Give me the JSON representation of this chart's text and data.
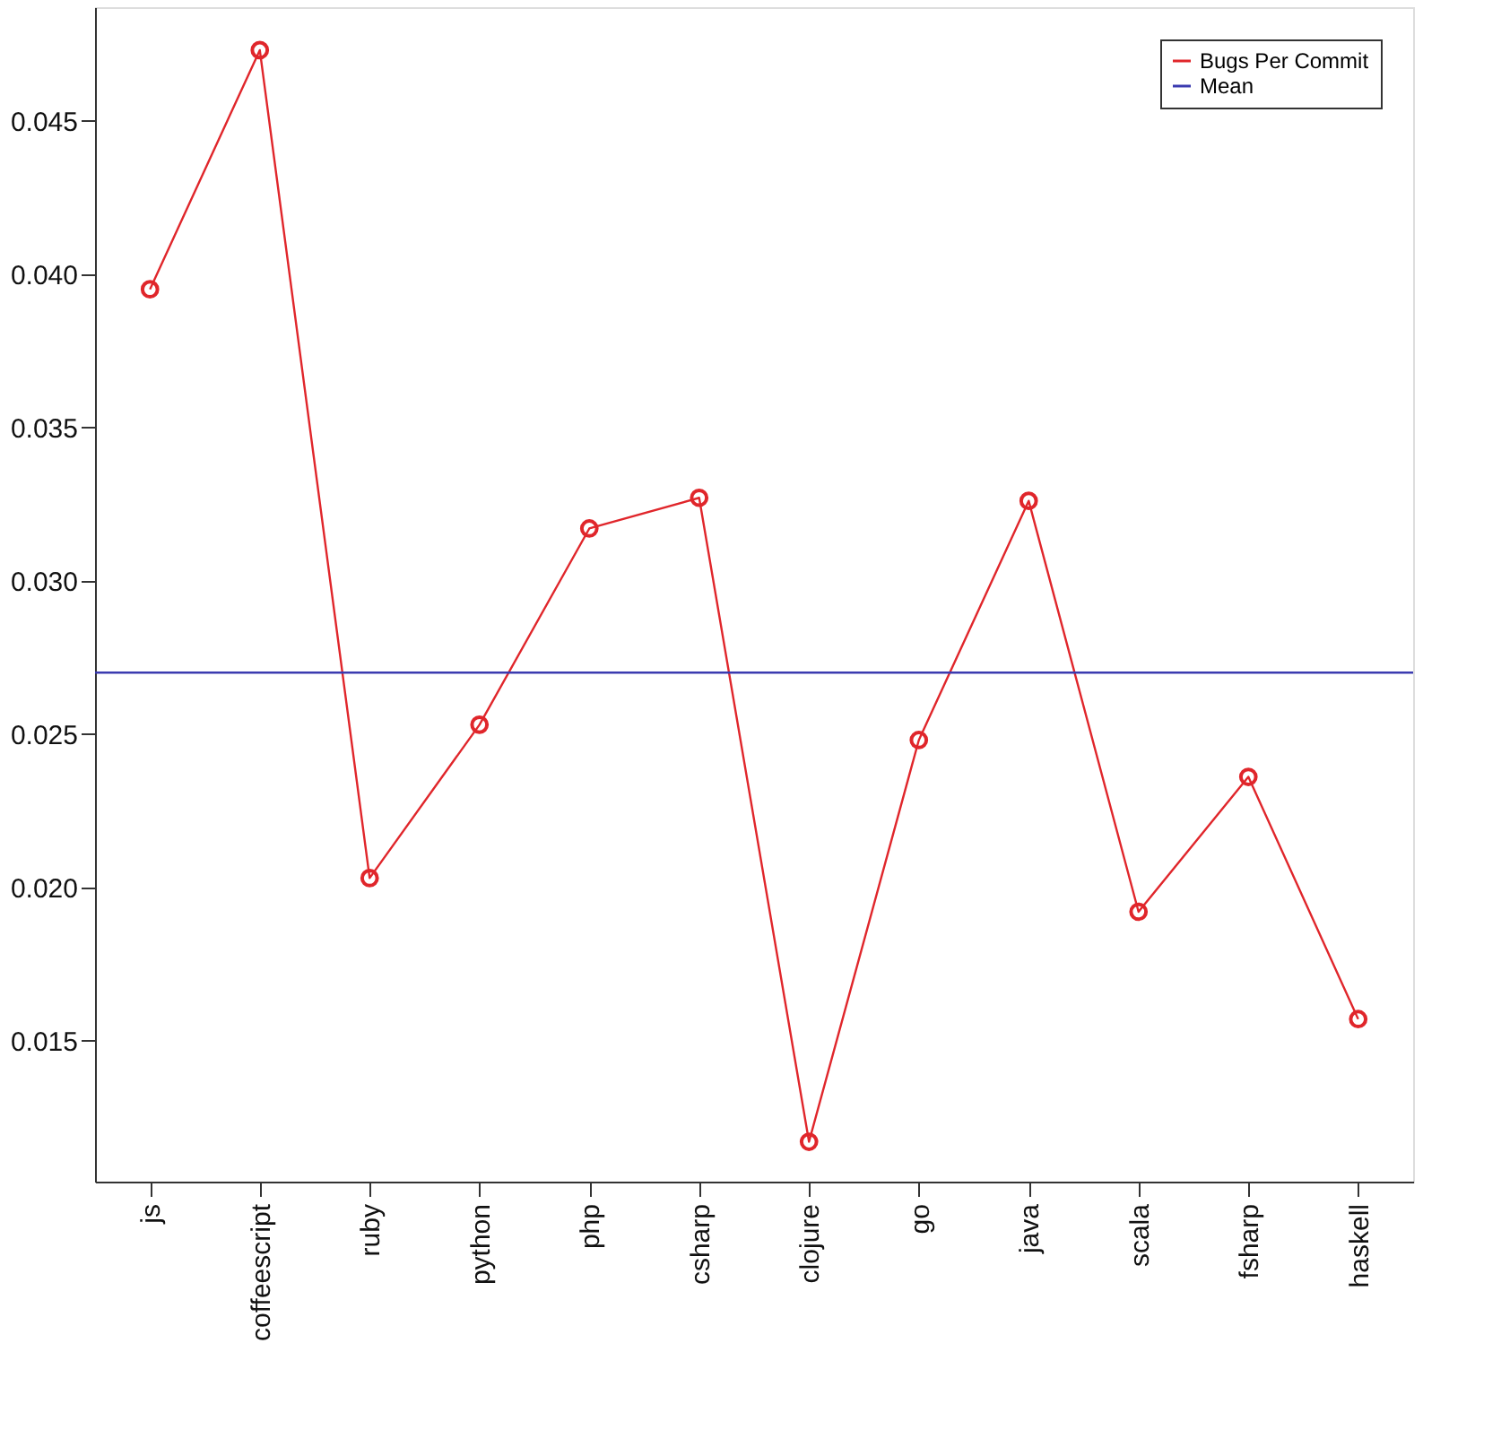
{
  "chart_data": {
    "type": "line",
    "categories": [
      "js",
      "coffeescript",
      "ruby",
      "python",
      "php",
      "csharp",
      "clojure",
      "go",
      "java",
      "scala",
      "fsharp",
      "haskell"
    ],
    "series": [
      {
        "name": "Bugs Per Commit",
        "color": "#e0262b",
        "values": [
          0.0395,
          0.0473,
          0.0203,
          0.0253,
          0.0317,
          0.0327,
          0.0117,
          0.0248,
          0.0326,
          0.0192,
          0.0236,
          0.0157
        ]
      }
    ],
    "ref_lines": [
      {
        "axis": "y",
        "value": 0.027,
        "label": "Mean",
        "color": "#3b3bb0"
      }
    ],
    "ylim": [
      0.0104,
      0.0487
    ],
    "yticks": [
      0.015,
      {
        "value": 0.02,
        "label": "0.020"
      },
      0.025,
      {
        "value": 0.03,
        "label": "0.030"
      },
      0.035,
      {
        "value": 0.04,
        "label": "0.040"
      },
      0.045
    ],
    "marker": "circle",
    "line_style": "solid",
    "grid": false,
    "legend": "top right"
  }
}
